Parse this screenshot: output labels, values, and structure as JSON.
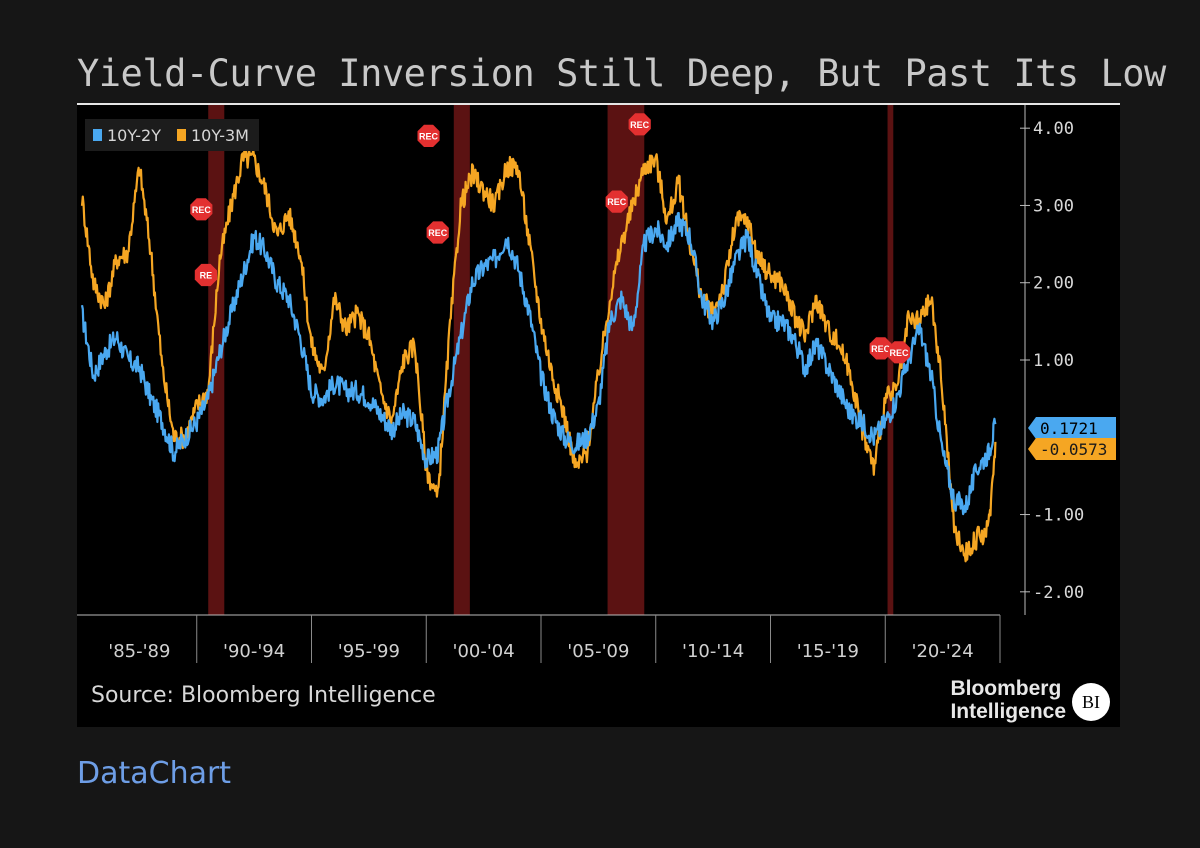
{
  "footer_link": "DataChart",
  "source": "Source: Bloomberg Intelligence",
  "brand": {
    "line1": "Bloomberg",
    "line2": "Intelligence",
    "badge": "BI"
  },
  "colors": {
    "series1": "#4aa8f0",
    "series2": "#f5a623",
    "recession": "#6b1515",
    "rec_marker": "#e33030",
    "background": "#000000"
  },
  "chart_data": {
    "type": "line",
    "title": "Yield-Curve Inversion Still Deep, But Past Its Low",
    "xlabel": "",
    "ylabel": "",
    "xlim": [
      1985,
      2025
    ],
    "ylim": [
      -2.3,
      4.3
    ],
    "yticks": [
      -2,
      -1,
      1,
      2,
      3,
      4
    ],
    "ytick_labels": [
      "-2.00",
      "-1.00",
      "1.00",
      "2.00",
      "3.00",
      "4.00"
    ],
    "x_period_labels": [
      {
        "label": "'85-'89",
        "center": 1987.5
      },
      {
        "label": "'90-'94",
        "center": 1992.5
      },
      {
        "label": "'95-'99",
        "center": 1997.5
      },
      {
        "label": "'00-'04",
        "center": 2002.5
      },
      {
        "label": "'05-'09",
        "center": 2007.5
      },
      {
        "label": "'10-'14",
        "center": 2012.5
      },
      {
        "label": "'15-'19",
        "center": 2017.5
      },
      {
        "label": "'20-'24",
        "center": 2022.5
      }
    ],
    "x_separators": [
      1990,
      1995,
      2000,
      2005,
      2010,
      2015,
      2020,
      2025
    ],
    "recessions": [
      [
        1990.5,
        1991.2
      ],
      [
        2001.2,
        2001.9
      ],
      [
        2007.9,
        2009.5
      ],
      [
        2020.1,
        2020.35
      ]
    ],
    "rec_markers": [
      {
        "label": "REC",
        "x": 1990.2,
        "y": 2.95
      },
      {
        "label": "RE",
        "x": 1990.4,
        "y": 2.1
      },
      {
        "label": "REC",
        "x": 2000.1,
        "y": 3.9
      },
      {
        "label": "REC",
        "x": 2000.5,
        "y": 2.65
      },
      {
        "label": "REC",
        "x": 2008.3,
        "y": 3.05
      },
      {
        "label": "REC",
        "x": 2009.3,
        "y": 4.05
      },
      {
        "label": "REC",
        "x": 2019.8,
        "y": 1.15
      },
      {
        "label": "REC",
        "x": 2020.6,
        "y": 1.1
      }
    ],
    "series": [
      {
        "name": "10Y-2Y",
        "last_value": "0.1721",
        "points": [
          [
            1985,
            1.6
          ],
          [
            1985.5,
            0.8
          ],
          [
            1986,
            1.1
          ],
          [
            1986.5,
            1.3
          ],
          [
            1987,
            1.0
          ],
          [
            1987.5,
            0.9
          ],
          [
            1988,
            0.5
          ],
          [
            1988.5,
            0.2
          ],
          [
            1989,
            -0.2
          ],
          [
            1989.5,
            0.0
          ],
          [
            1990,
            0.2
          ],
          [
            1990.5,
            0.5
          ],
          [
            1991,
            1.1
          ],
          [
            1991.5,
            1.6
          ],
          [
            1992,
            2.1
          ],
          [
            1992.5,
            2.6
          ],
          [
            1993,
            2.4
          ],
          [
            1993.5,
            2.0
          ],
          [
            1994,
            1.8
          ],
          [
            1994.5,
            1.3
          ],
          [
            1995,
            0.6
          ],
          [
            1995.5,
            0.5
          ],
          [
            1996,
            0.7
          ],
          [
            1996.5,
            0.6
          ],
          [
            1997,
            0.6
          ],
          [
            1997.5,
            0.5
          ],
          [
            1998,
            0.3
          ],
          [
            1998.5,
            0.1
          ],
          [
            1999,
            0.3
          ],
          [
            1999.5,
            0.2
          ],
          [
            2000,
            -0.3
          ],
          [
            2000.5,
            -0.2
          ],
          [
            2001,
            0.6
          ],
          [
            2001.5,
            1.3
          ],
          [
            2002,
            2.0
          ],
          [
            2002.5,
            2.2
          ],
          [
            2003,
            2.3
          ],
          [
            2003.5,
            2.6
          ],
          [
            2004,
            2.2
          ],
          [
            2004.5,
            1.6
          ],
          [
            2005,
            0.8
          ],
          [
            2005.5,
            0.3
          ],
          [
            2006,
            0.0
          ],
          [
            2006.5,
            -0.1
          ],
          [
            2007,
            0.0
          ],
          [
            2007.5,
            0.4
          ],
          [
            2008,
            1.5
          ],
          [
            2008.5,
            1.8
          ],
          [
            2009,
            1.4
          ],
          [
            2009.5,
            2.5
          ],
          [
            2010,
            2.7
          ],
          [
            2010.5,
            2.5
          ],
          [
            2011,
            2.8
          ],
          [
            2011.5,
            2.6
          ],
          [
            2012,
            1.8
          ],
          [
            2012.5,
            1.5
          ],
          [
            2013,
            1.8
          ],
          [
            2013.5,
            2.3
          ],
          [
            2014,
            2.6
          ],
          [
            2014.5,
            2.0
          ],
          [
            2015,
            1.5
          ],
          [
            2015.5,
            1.5
          ],
          [
            2016,
            1.3
          ],
          [
            2016.5,
            0.9
          ],
          [
            2017,
            1.2
          ],
          [
            2017.5,
            0.9
          ],
          [
            2018,
            0.6
          ],
          [
            2018.5,
            0.3
          ],
          [
            2019,
            0.2
          ],
          [
            2019.5,
            0.0
          ],
          [
            2020,
            0.2
          ],
          [
            2020.5,
            0.5
          ],
          [
            2021,
            1.0
          ],
          [
            2021.5,
            1.4
          ],
          [
            2022,
            0.8
          ],
          [
            2022.5,
            -0.2
          ],
          [
            2023,
            -0.8
          ],
          [
            2023.5,
            -0.9
          ],
          [
            2024,
            -0.4
          ],
          [
            2024.5,
            -0.2
          ],
          [
            2024.8,
            0.17
          ]
        ]
      },
      {
        "name": "10Y-3M",
        "last_value": "-0.0573",
        "points": [
          [
            1985,
            3.1
          ],
          [
            1985.5,
            2.0
          ],
          [
            1986,
            1.7
          ],
          [
            1986.5,
            2.3
          ],
          [
            1987,
            2.4
          ],
          [
            1987.5,
            3.5
          ],
          [
            1988,
            2.4
          ],
          [
            1988.5,
            0.9
          ],
          [
            1989,
            0.0
          ],
          [
            1989.5,
            0.0
          ],
          [
            1990,
            0.4
          ],
          [
            1990.5,
            0.6
          ],
          [
            1991,
            2.3
          ],
          [
            1991.5,
            3.0
          ],
          [
            1992,
            3.6
          ],
          [
            1992.5,
            3.6
          ],
          [
            1993,
            3.2
          ],
          [
            1993.5,
            2.6
          ],
          [
            1994,
            2.9
          ],
          [
            1994.5,
            2.4
          ],
          [
            1995,
            1.2
          ],
          [
            1995.5,
            0.8
          ],
          [
            1996,
            1.8
          ],
          [
            1996.5,
            1.4
          ],
          [
            1997,
            1.6
          ],
          [
            1997.5,
            1.3
          ],
          [
            1998,
            0.6
          ],
          [
            1998.5,
            0.2
          ],
          [
            1999,
            1.0
          ],
          [
            1999.5,
            1.2
          ],
          [
            2000,
            -0.4
          ],
          [
            2000.5,
            -0.8
          ],
          [
            2001,
            1.3
          ],
          [
            2001.5,
            3.0
          ],
          [
            2002,
            3.4
          ],
          [
            2002.5,
            3.2
          ],
          [
            2003,
            3.0
          ],
          [
            2003.5,
            3.5
          ],
          [
            2004,
            3.5
          ],
          [
            2004.5,
            2.5
          ],
          [
            2005,
            1.5
          ],
          [
            2005.5,
            0.8
          ],
          [
            2006,
            0.3
          ],
          [
            2006.5,
            -0.4
          ],
          [
            2007,
            -0.2
          ],
          [
            2007.5,
            0.8
          ],
          [
            2008,
            1.8
          ],
          [
            2008.5,
            2.5
          ],
          [
            2009,
            3.0
          ],
          [
            2009.5,
            3.5
          ],
          [
            2010,
            3.6
          ],
          [
            2010.5,
            2.8
          ],
          [
            2011,
            3.3
          ],
          [
            2011.5,
            2.5
          ],
          [
            2012,
            1.8
          ],
          [
            2012.5,
            1.6
          ],
          [
            2013,
            2.0
          ],
          [
            2013.5,
            2.8
          ],
          [
            2014,
            2.8
          ],
          [
            2014.5,
            2.3
          ],
          [
            2015,
            2.1
          ],
          [
            2015.5,
            2.0
          ],
          [
            2016,
            1.6
          ],
          [
            2016.5,
            1.3
          ],
          [
            2017,
            1.8
          ],
          [
            2017.5,
            1.4
          ],
          [
            2018,
            1.2
          ],
          [
            2018.5,
            0.8
          ],
          [
            2019,
            0.1
          ],
          [
            2019.5,
            -0.4
          ],
          [
            2020,
            0.5
          ],
          [
            2020.5,
            0.6
          ],
          [
            2021,
            1.5
          ],
          [
            2021.5,
            1.5
          ],
          [
            2022,
            1.8
          ],
          [
            2022.5,
            0.6
          ],
          [
            2023,
            -1.2
          ],
          [
            2023.5,
            -1.5
          ],
          [
            2024,
            -1.3
          ],
          [
            2024.5,
            -1.2
          ],
          [
            2024.8,
            -0.06
          ]
        ]
      }
    ]
  }
}
